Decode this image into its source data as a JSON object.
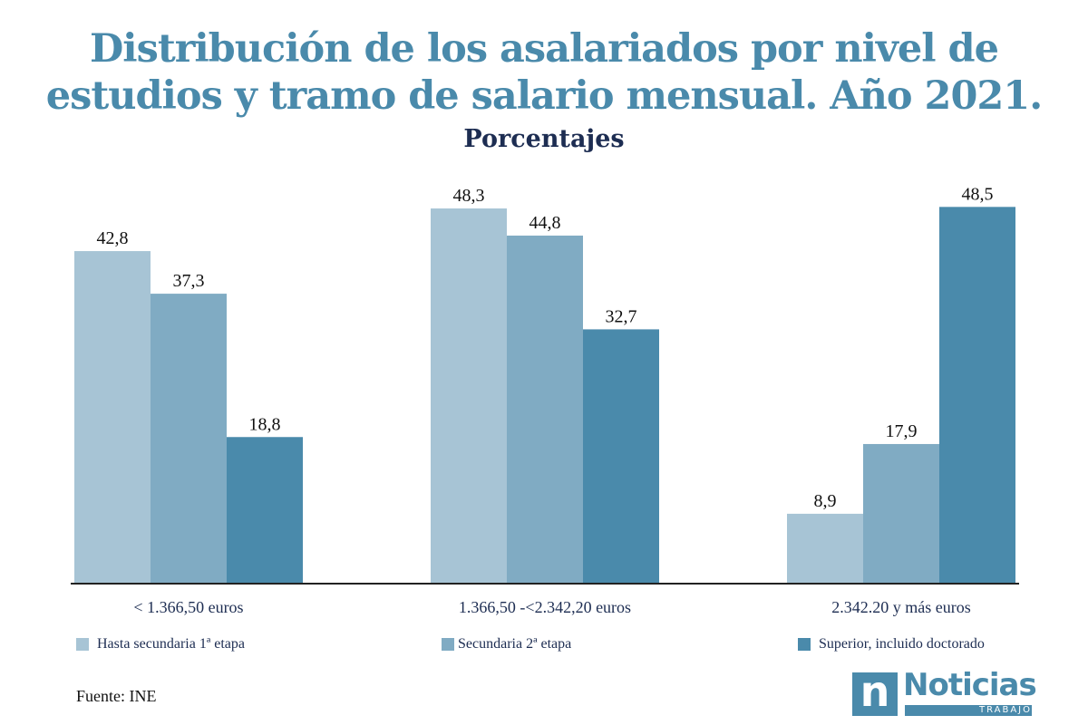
{
  "header": {
    "title_line1": "Distribución de los asalariados por nivel de",
    "title_line2": "estudios y tramo de salario mensual. Año 2021.",
    "subtitle": "Porcentajes"
  },
  "chart_data": {
    "type": "bar",
    "title": "Distribución de los asalariados por nivel de estudios y tramo de salario mensual. Año 2021.",
    "subtitle": "Porcentajes",
    "categories": [
      "< 1.366,50 euros",
      "1.366,50 -<2.342,20 euros",
      "2.342.20 y más euros"
    ],
    "series": [
      {
        "name": "Hasta secundaria 1ª etapa",
        "values": [
          42.8,
          48.3,
          8.9
        ],
        "labels": [
          "42,8",
          "48,3",
          "8,9"
        ],
        "color": "#a7c4d5"
      },
      {
        "name": "Secundaria 2ª etapa",
        "values": [
          37.3,
          44.8,
          17.9
        ],
        "labels": [
          "37,3",
          "44,8",
          "17,9"
        ],
        "color": "#80abc3"
      },
      {
        "name": "Superior, incluido doctorado",
        "values": [
          18.8,
          32.7,
          48.5
        ],
        "labels": [
          "18,8",
          "32,7",
          "48,5"
        ],
        "color": "#4a8aab"
      }
    ],
    "ylim": [
      0,
      50
    ],
    "grid": false,
    "legend": "bottom"
  },
  "source": "Fuente: INE",
  "logo": {
    "main": "Noticias",
    "sub": "TRABAJO",
    "mark": "n"
  },
  "colors": {
    "title": "#4a8aab",
    "subtitle": "#1d2d52",
    "text": "#1d2d52"
  }
}
